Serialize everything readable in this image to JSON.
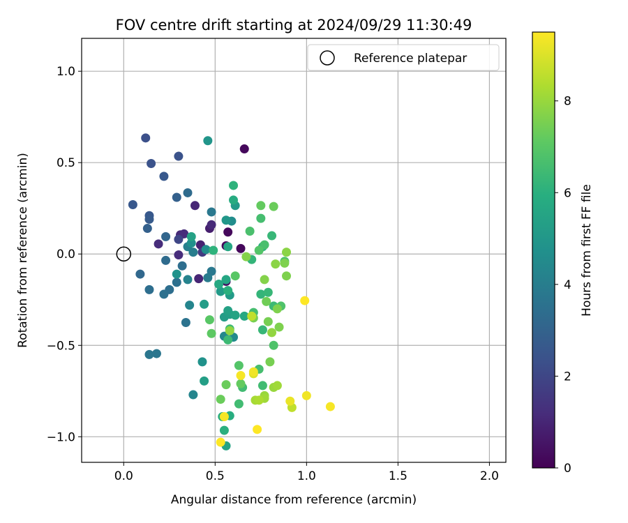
{
  "chart_data": {
    "type": "scatter",
    "title": "FOV centre drift starting at 2024/09/29 11:30:49",
    "xlabel": "Angular distance from reference (arcmin)",
    "ylabel": "Rotation from reference (arcmin)",
    "xlim": [
      -0.23,
      2.09
    ],
    "ylim": [
      -1.14,
      1.18
    ],
    "xticks": [
      "0.0",
      "0.5",
      "1.0",
      "1.5",
      "2.0"
    ],
    "xtick_values": [
      0.0,
      0.5,
      1.0,
      1.5,
      2.0
    ],
    "yticks": [
      "−1.0",
      "−0.5",
      "0.0",
      "0.5",
      "1.0"
    ],
    "ytick_values": [
      -1.0,
      -0.5,
      0.0,
      0.5,
      1.0
    ],
    "grid": true,
    "legend": {
      "position": "upper right",
      "entries": [
        "Reference platepar"
      ]
    },
    "reference_point": {
      "x": 0.0,
      "y": 0.0
    },
    "colorbar": {
      "label": "Hours from first FF file",
      "colormap": "viridis",
      "range": [
        0,
        9.5
      ],
      "ticks": [
        "0",
        "2",
        "4",
        "6",
        "8"
      ],
      "tick_values": [
        0,
        2,
        4,
        6,
        8
      ]
    },
    "points": [
      {
        "x": 0.66,
        "y": 0.575,
        "h": 0.2
      },
      {
        "x": 0.57,
        "y": 0.12,
        "h": 0.2
      },
      {
        "x": 0.56,
        "y": 0.045,
        "h": 0.2
      },
      {
        "x": 0.64,
        "y": 0.03,
        "h": 0.2
      },
      {
        "x": 0.56,
        "y": -0.15,
        "h": 0.5
      },
      {
        "x": 0.47,
        "y": 0.14,
        "h": 0.8
      },
      {
        "x": 0.42,
        "y": 0.05,
        "h": 0.9
      },
      {
        "x": 0.39,
        "y": 0.265,
        "h": 1.0
      },
      {
        "x": 0.48,
        "y": 0.16,
        "h": 1.1
      },
      {
        "x": 0.31,
        "y": 0.105,
        "h": 1.1
      },
      {
        "x": 0.33,
        "y": 0.11,
        "h": 1.2
      },
      {
        "x": 0.19,
        "y": 0.055,
        "h": 1.2
      },
      {
        "x": 0.41,
        "y": -0.135,
        "h": 1.0
      },
      {
        "x": 0.3,
        "y": -0.005,
        "h": 1.2
      },
      {
        "x": 0.43,
        "y": 0.01,
        "h": 1.6
      },
      {
        "x": 0.3,
        "y": 0.08,
        "h": 2.0
      },
      {
        "x": 0.12,
        "y": 0.635,
        "h": 2.3
      },
      {
        "x": 0.15,
        "y": 0.495,
        "h": 2.4
      },
      {
        "x": 0.3,
        "y": 0.535,
        "h": 2.4
      },
      {
        "x": 0.22,
        "y": 0.425,
        "h": 2.6
      },
      {
        "x": 0.05,
        "y": 0.27,
        "h": 2.6
      },
      {
        "x": 0.14,
        "y": 0.21,
        "h": 2.6
      },
      {
        "x": 0.14,
        "y": 0.19,
        "h": 2.7
      },
      {
        "x": 0.29,
        "y": 0.31,
        "h": 2.9
      },
      {
        "x": 0.13,
        "y": 0.14,
        "h": 2.9
      },
      {
        "x": 0.23,
        "y": 0.095,
        "h": 3.1
      },
      {
        "x": 0.09,
        "y": -0.11,
        "h": 3.2
      },
      {
        "x": 0.35,
        "y": 0.335,
        "h": 3.3
      },
      {
        "x": 0.23,
        "y": -0.035,
        "h": 3.3
      },
      {
        "x": 0.32,
        "y": -0.065,
        "h": 3.4
      },
      {
        "x": 0.14,
        "y": -0.195,
        "h": 3.4
      },
      {
        "x": 0.25,
        "y": -0.195,
        "h": 3.4
      },
      {
        "x": 0.22,
        "y": -0.22,
        "h": 3.5
      },
      {
        "x": 0.29,
        "y": -0.155,
        "h": 3.5
      },
      {
        "x": 0.34,
        "y": -0.375,
        "h": 3.6
      },
      {
        "x": 0.14,
        "y": -0.55,
        "h": 3.7
      },
      {
        "x": 0.18,
        "y": -0.545,
        "h": 3.7
      },
      {
        "x": 0.48,
        "y": 0.23,
        "h": 3.8
      },
      {
        "x": 0.48,
        "y": -0.095,
        "h": 3.8
      },
      {
        "x": 0.46,
        "y": -0.13,
        "h": 3.9
      },
      {
        "x": 0.38,
        "y": 0.01,
        "h": 4.0
      },
      {
        "x": 0.35,
        "y": 0.04,
        "h": 4.1
      },
      {
        "x": 0.35,
        "y": -0.14,
        "h": 4.2
      },
      {
        "x": 0.36,
        "y": -0.28,
        "h": 4.3
      },
      {
        "x": 0.38,
        "y": -0.77,
        "h": 4.3
      },
      {
        "x": 0.55,
        "y": -0.45,
        "h": 4.4
      },
      {
        "x": 0.6,
        "y": -0.455,
        "h": 4.5
      },
      {
        "x": 0.59,
        "y": 0.18,
        "h": 4.6
      },
      {
        "x": 0.45,
        "y": 0.025,
        "h": 4.6
      },
      {
        "x": 0.37,
        "y": 0.06,
        "h": 4.7
      },
      {
        "x": 0.29,
        "y": -0.11,
        "h": 4.8
      },
      {
        "x": 0.43,
        "y": -0.59,
        "h": 4.8
      },
      {
        "x": 0.46,
        "y": 0.62,
        "h": 4.9
      },
      {
        "x": 0.56,
        "y": 0.185,
        "h": 5.0
      },
      {
        "x": 0.53,
        "y": -0.205,
        "h": 5.1
      },
      {
        "x": 0.61,
        "y": 0.265,
        "h": 5.1
      },
      {
        "x": 0.58,
        "y": -0.225,
        "h": 5.1
      },
      {
        "x": 0.55,
        "y": -0.345,
        "h": 5.2
      },
      {
        "x": 0.44,
        "y": -0.275,
        "h": 5.2
      },
      {
        "x": 0.58,
        "y": -0.33,
        "h": 5.3
      },
      {
        "x": 0.44,
        "y": -0.695,
        "h": 5.3
      },
      {
        "x": 0.37,
        "y": 0.095,
        "h": 5.4
      },
      {
        "x": 0.57,
        "y": -0.31,
        "h": 5.4
      },
      {
        "x": 0.56,
        "y": -1.05,
        "h": 5.5
      },
      {
        "x": 0.61,
        "y": -0.335,
        "h": 5.5
      },
      {
        "x": 0.56,
        "y": -0.14,
        "h": 5.6
      },
      {
        "x": 0.57,
        "y": 0.04,
        "h": 5.6
      },
      {
        "x": 0.66,
        "y": -0.34,
        "h": 5.7
      },
      {
        "x": 0.52,
        "y": -0.165,
        "h": 5.7
      },
      {
        "x": 0.6,
        "y": 0.295,
        "h": 5.8
      },
      {
        "x": 0.54,
        "y": -0.89,
        "h": 5.9
      },
      {
        "x": 0.58,
        "y": -0.885,
        "h": 5.9
      },
      {
        "x": 0.55,
        "y": -0.965,
        "h": 6.0
      },
      {
        "x": 0.57,
        "y": -0.2,
        "h": 6.0
      },
      {
        "x": 0.76,
        "y": 0.04,
        "h": 6.0
      },
      {
        "x": 0.6,
        "y": 0.375,
        "h": 6.1
      },
      {
        "x": 0.49,
        "y": 0.02,
        "h": 6.1
      },
      {
        "x": 0.7,
        "y": -0.03,
        "h": 6.2
      },
      {
        "x": 0.75,
        "y": -0.22,
        "h": 6.2
      },
      {
        "x": 0.79,
        "y": -0.21,
        "h": 6.3
      },
      {
        "x": 0.81,
        "y": 0.1,
        "h": 6.3
      },
      {
        "x": 0.76,
        "y": -0.415,
        "h": 6.3
      },
      {
        "x": 0.82,
        "y": -0.285,
        "h": 6.4
      },
      {
        "x": 0.58,
        "y": -0.41,
        "h": 6.4
      },
      {
        "x": 0.57,
        "y": -0.47,
        "h": 6.4
      },
      {
        "x": 0.65,
        "y": -0.73,
        "h": 6.5
      },
      {
        "x": 0.63,
        "y": -0.82,
        "h": 6.5
      },
      {
        "x": 0.76,
        "y": -0.72,
        "h": 6.5
      },
      {
        "x": 0.74,
        "y": -0.63,
        "h": 6.6
      },
      {
        "x": 0.71,
        "y": -0.32,
        "h": 6.6
      },
      {
        "x": 0.75,
        "y": 0.195,
        "h": 6.6
      },
      {
        "x": 0.69,
        "y": 0.125,
        "h": 6.7
      },
      {
        "x": 0.77,
        "y": 0.05,
        "h": 6.7
      },
      {
        "x": 0.86,
        "y": -0.285,
        "h": 6.8
      },
      {
        "x": 0.82,
        "y": -0.5,
        "h": 6.8
      },
      {
        "x": 0.88,
        "y": -0.04,
        "h": 6.8
      },
      {
        "x": 0.74,
        "y": 0.02,
        "h": 6.9
      },
      {
        "x": 0.63,
        "y": -0.61,
        "h": 6.9
      },
      {
        "x": 0.47,
        "y": -0.36,
        "h": 7.0
      },
      {
        "x": 0.61,
        "y": -0.12,
        "h": 7.0
      },
      {
        "x": 0.48,
        "y": -0.435,
        "h": 7.1
      },
      {
        "x": 0.64,
        "y": -0.71,
        "h": 7.2
      },
      {
        "x": 0.75,
        "y": 0.265,
        "h": 7.2
      },
      {
        "x": 0.82,
        "y": 0.26,
        "h": 7.3
      },
      {
        "x": 0.53,
        "y": -0.795,
        "h": 7.3
      },
      {
        "x": 0.56,
        "y": -0.715,
        "h": 7.3
      },
      {
        "x": 0.78,
        "y": -0.26,
        "h": 7.4
      },
      {
        "x": 0.71,
        "y": -0.35,
        "h": 7.5
      },
      {
        "x": 0.79,
        "y": -0.37,
        "h": 7.5
      },
      {
        "x": 0.8,
        "y": -0.59,
        "h": 7.5
      },
      {
        "x": 0.84,
        "y": -0.3,
        "h": 7.6
      },
      {
        "x": 0.85,
        "y": -0.4,
        "h": 7.6
      },
      {
        "x": 0.88,
        "y": -0.05,
        "h": 7.6
      },
      {
        "x": 0.89,
        "y": -0.12,
        "h": 7.6
      },
      {
        "x": 0.67,
        "y": -0.015,
        "h": 7.7
      },
      {
        "x": 0.77,
        "y": -0.14,
        "h": 7.7
      },
      {
        "x": 0.89,
        "y": 0.01,
        "h": 7.8
      },
      {
        "x": 0.83,
        "y": -0.055,
        "h": 7.8
      },
      {
        "x": 0.81,
        "y": -0.43,
        "h": 7.9
      },
      {
        "x": 0.58,
        "y": -0.42,
        "h": 7.9
      },
      {
        "x": 0.82,
        "y": -0.73,
        "h": 8.0
      },
      {
        "x": 0.77,
        "y": -0.775,
        "h": 8.0
      },
      {
        "x": 0.77,
        "y": -0.79,
        "h": 8.1
      },
      {
        "x": 0.84,
        "y": -0.72,
        "h": 8.1
      },
      {
        "x": 0.72,
        "y": -0.8,
        "h": 8.2
      },
      {
        "x": 0.74,
        "y": -0.8,
        "h": 8.3
      },
      {
        "x": 0.7,
        "y": -0.34,
        "h": 8.6
      },
      {
        "x": 0.92,
        "y": -0.84,
        "h": 8.6
      },
      {
        "x": 0.71,
        "y": -0.655,
        "h": 9.0
      },
      {
        "x": 0.91,
        "y": -0.805,
        "h": 9.2
      },
      {
        "x": 0.71,
        "y": -0.645,
        "h": 9.3
      },
      {
        "x": 1.0,
        "y": -0.775,
        "h": 9.3
      },
      {
        "x": 0.55,
        "y": -0.89,
        "h": 9.4
      },
      {
        "x": 1.13,
        "y": -0.835,
        "h": 9.4
      },
      {
        "x": 0.64,
        "y": -0.665,
        "h": 9.4
      },
      {
        "x": 0.53,
        "y": -1.03,
        "h": 9.5
      },
      {
        "x": 0.73,
        "y": -0.96,
        "h": 9.5
      },
      {
        "x": 0.99,
        "y": -0.255,
        "h": 9.5
      }
    ]
  }
}
